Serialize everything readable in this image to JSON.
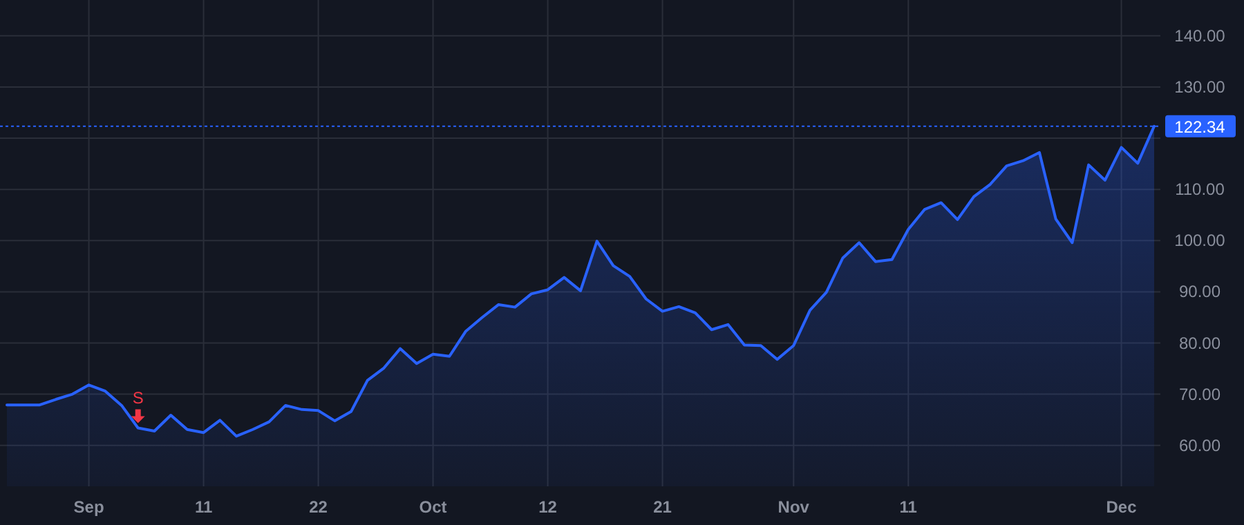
{
  "chart_data": {
    "type": "area",
    "categories": [
      null,
      null,
      null,
      null,
      null,
      "Sep",
      null,
      null,
      null,
      null,
      null,
      null,
      "11",
      null,
      null,
      null,
      null,
      null,
      null,
      "22",
      null,
      null,
      null,
      null,
      null,
      null,
      "Oct",
      null,
      null,
      null,
      null,
      null,
      null,
      "12",
      null,
      null,
      null,
      null,
      null,
      null,
      "21",
      null,
      null,
      null,
      null,
      null,
      null,
      null,
      "Nov",
      null,
      null,
      null,
      null,
      null,
      null,
      "11",
      null,
      null,
      null,
      null,
      null,
      null,
      null,
      null,
      null,
      null,
      null,
      null,
      "Dec",
      null,
      null
    ],
    "series": [
      {
        "color": "#2962ff",
        "values": [
          67.9,
          67.9,
          67.9,
          69.0,
          70.0,
          71.8,
          70.6,
          67.8,
          63.4,
          62.8,
          65.9,
          63.1,
          62.5,
          64.9,
          61.8,
          63.1,
          64.6,
          67.8,
          67.0,
          66.8,
          64.8,
          66.6,
          72.7,
          75.1,
          78.9,
          76.0,
          77.8,
          77.4,
          82.3,
          85.0,
          87.5,
          87.0,
          89.6,
          90.4,
          92.8,
          90.2,
          99.9,
          95.1,
          93.0,
          88.6,
          86.2,
          87.1,
          85.9,
          82.6,
          83.6,
          79.6,
          79.5,
          76.8,
          79.5,
          86.4,
          89.9,
          96.6,
          99.6,
          95.9,
          96.3,
          102.2,
          106.1,
          107.4,
          104.1,
          108.6,
          111.0,
          114.6,
          115.6,
          117.2,
          104.2,
          99.6,
          114.8,
          111.8,
          118.2,
          115.1,
          122.34
        ]
      },
      {
        "type": "scatter",
        "name": "S",
        "color": "#f23645",
        "marker": "triangle",
        "values": [
          null,
          null,
          null,
          null,
          null,
          null,
          null,
          null,
          65.7,
          null,
          null,
          null,
          null,
          null,
          null,
          null,
          null,
          null,
          null,
          null,
          null,
          null,
          null,
          null,
          null,
          null,
          null,
          null,
          null,
          null,
          null,
          null,
          null,
          null,
          null,
          null,
          null,
          null,
          null,
          null,
          null,
          null,
          null,
          null,
          null,
          null,
          null,
          null,
          null,
          null,
          null,
          null,
          null,
          null,
          null,
          null,
          null,
          null,
          null,
          null,
          null,
          null,
          null,
          null,
          null,
          null,
          null,
          null,
          null,
          null,
          null
        ]
      }
    ],
    "ylim": [
      52,
      147
    ],
    "yticks": [
      {
        "value": 60,
        "label": "60.00"
      },
      {
        "value": 70,
        "label": "70.00"
      },
      {
        "value": 80,
        "label": "80.00"
      },
      {
        "value": 90,
        "label": "90.00"
      },
      {
        "value": 100,
        "label": "100.00"
      },
      {
        "value": 110,
        "label": "110.00"
      },
      {
        "value": 120,
        "label": null
      },
      {
        "value": 130,
        "label": "130.00"
      },
      {
        "value": 140,
        "label": "140.00"
      }
    ],
    "ref_lines": [
      {
        "axis": "y",
        "value": 122.34,
        "label": "122.34",
        "color": "#2962ff",
        "line_style": "dotted"
      }
    ],
    "grid": true,
    "legend": false
  }
}
